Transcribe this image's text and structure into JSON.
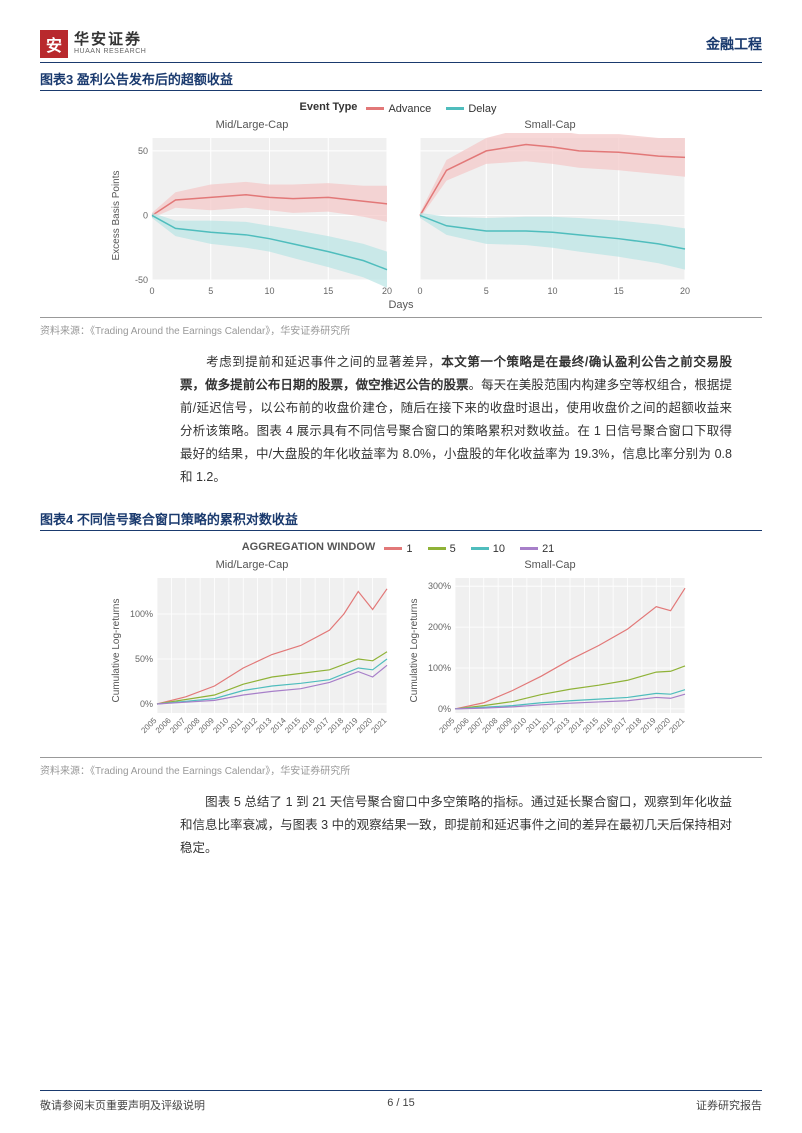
{
  "header": {
    "logo_glyph": "安",
    "logo_cn": "华安证券",
    "logo_en": "HUAAN RESEARCH",
    "category": "金融工程"
  },
  "figure3": {
    "title": "图表3 盈利公告发布后的超额收益",
    "legend_title": "Event Type",
    "series": [
      {
        "name": "Advance",
        "color": "#e27878",
        "fill": "#f4c6c6"
      },
      {
        "name": "Delay",
        "color": "#4fbdbd",
        "fill": "#b8e4e4"
      }
    ],
    "panels": [
      "Mid/Large-Cap",
      "Small-Cap"
    ],
    "y_label": "Excess Basis Points",
    "x_label": "Days",
    "xlim": [
      0,
      20
    ],
    "xtick_step": 5,
    "ylim": [
      -50,
      60
    ],
    "yticks": [
      -50,
      0,
      50
    ],
    "background": "#f0f0f0",
    "grid_color": "#ffffff",
    "data": {
      "mid": {
        "advance": {
          "x": [
            0,
            2,
            5,
            8,
            10,
            12,
            15,
            18,
            20
          ],
          "y": [
            0,
            12,
            14,
            16,
            14,
            13,
            14,
            11,
            9
          ],
          "lo": [
            -2,
            6,
            4,
            6,
            4,
            2,
            3,
            -1,
            -5
          ],
          "hi": [
            2,
            18,
            24,
            26,
            24,
            24,
            25,
            23,
            23
          ]
        },
        "delay": {
          "x": [
            0,
            2,
            5,
            8,
            10,
            12,
            15,
            18,
            20
          ],
          "y": [
            0,
            -10,
            -13,
            -15,
            -18,
            -22,
            -28,
            -35,
            -42
          ],
          "lo": [
            -2,
            -16,
            -22,
            -25,
            -28,
            -33,
            -40,
            -48,
            -56
          ],
          "hi": [
            2,
            -4,
            -4,
            -5,
            -8,
            -11,
            -16,
            -22,
            -28
          ]
        }
      },
      "small": {
        "advance": {
          "x": [
            0,
            2,
            5,
            8,
            10,
            12,
            15,
            18,
            20
          ],
          "y": [
            0,
            35,
            50,
            55,
            53,
            50,
            49,
            46,
            45
          ],
          "lo": [
            -2,
            27,
            40,
            42,
            40,
            37,
            35,
            32,
            30
          ],
          "hi": [
            2,
            43,
            60,
            68,
            66,
            63,
            63,
            60,
            60
          ]
        },
        "delay": {
          "x": [
            0,
            2,
            5,
            8,
            10,
            12,
            15,
            18,
            20
          ],
          "y": [
            0,
            -8,
            -12,
            -12,
            -13,
            -15,
            -18,
            -22,
            -26
          ],
          "lo": [
            -2,
            -15,
            -22,
            -23,
            -25,
            -28,
            -32,
            -37,
            -42
          ],
          "hi": [
            2,
            -1,
            -2,
            -1,
            -1,
            -2,
            -4,
            -7,
            -10
          ]
        }
      }
    },
    "source": "资料来源：《Trading Around the Earnings Calendar》，华安证券研究所"
  },
  "paragraph1": {
    "indent": "　　",
    "pre": "考虑到提前和延迟事件之间的显著差异，",
    "bold": "本文第一个策略是在最终/确认盈利公告之前交易股票，做多提前公布日期的股票，做空推迟公告的股票",
    "post": "。每天在美股范围内构建多空等权组合，根据提前/延迟信号，以公布前的收盘价建仓，随后在接下来的收盘时退出，使用收盘价之间的超额收益来分析该策略。图表 4 展示具有不同信号聚合窗口的策略累积对数收益。在 1 日信号聚合窗口下取得最好的结果，中/大盘股的年化收益率为 8.0%，小盘股的年化收益率为 19.3%，信息比率分别为 0.8 和 1.2。"
  },
  "figure4": {
    "title": "图表4 不同信号聚合窗口策略的累积对数收益",
    "legend_title": "AGGREGATION WINDOW",
    "series": [
      {
        "name": "1",
        "color": "#e27878"
      },
      {
        "name": "5",
        "color": "#8fb237"
      },
      {
        "name": "10",
        "color": "#4fbdbd"
      },
      {
        "name": "21",
        "color": "#a77fc9"
      }
    ],
    "panels": [
      "Mid/Large-Cap",
      "Small-Cap"
    ],
    "y_label": "Cumulative Log-returns",
    "xlim": [
      2005,
      2021
    ],
    "xticks": [
      2005,
      2006,
      2007,
      2008,
      2009,
      2010,
      2011,
      2012,
      2013,
      2014,
      2015,
      2016,
      2017,
      2018,
      2019,
      2020,
      2021
    ],
    "ylim_mid": [
      -10,
      140
    ],
    "yticks_mid": [
      0,
      50,
      100
    ],
    "ylim_small": [
      -10,
      320
    ],
    "yticks_small": [
      0,
      100,
      200,
      300
    ],
    "ytick_suffix": "%",
    "background": "#f0f0f0",
    "grid_color": "#ffffff",
    "data": {
      "mid": {
        "1": [
          [
            2005,
            0
          ],
          [
            2007,
            8
          ],
          [
            2009,
            20
          ],
          [
            2011,
            40
          ],
          [
            2013,
            55
          ],
          [
            2015,
            65
          ],
          [
            2017,
            82
          ],
          [
            2018,
            100
          ],
          [
            2019,
            125
          ],
          [
            2020,
            105
          ],
          [
            2021,
            128
          ]
        ],
        "5": [
          [
            2005,
            0
          ],
          [
            2007,
            5
          ],
          [
            2009,
            10
          ],
          [
            2011,
            22
          ],
          [
            2013,
            30
          ],
          [
            2015,
            34
          ],
          [
            2017,
            38
          ],
          [
            2019,
            50
          ],
          [
            2020,
            48
          ],
          [
            2021,
            58
          ]
        ],
        "10": [
          [
            2005,
            0
          ],
          [
            2007,
            3
          ],
          [
            2009,
            6
          ],
          [
            2011,
            15
          ],
          [
            2013,
            20
          ],
          [
            2015,
            23
          ],
          [
            2017,
            27
          ],
          [
            2019,
            40
          ],
          [
            2020,
            38
          ],
          [
            2021,
            50
          ]
        ],
        "21": [
          [
            2005,
            0
          ],
          [
            2007,
            2
          ],
          [
            2009,
            4
          ],
          [
            2011,
            10
          ],
          [
            2013,
            14
          ],
          [
            2015,
            17
          ],
          [
            2017,
            24
          ],
          [
            2019,
            36
          ],
          [
            2020,
            30
          ],
          [
            2021,
            43
          ]
        ]
      },
      "small": {
        "1": [
          [
            2005,
            0
          ],
          [
            2007,
            15
          ],
          [
            2009,
            45
          ],
          [
            2011,
            80
          ],
          [
            2013,
            120
          ],
          [
            2015,
            155
          ],
          [
            2017,
            195
          ],
          [
            2019,
            250
          ],
          [
            2020,
            240
          ],
          [
            2021,
            295
          ]
        ],
        "5": [
          [
            2005,
            0
          ],
          [
            2007,
            8
          ],
          [
            2009,
            18
          ],
          [
            2011,
            35
          ],
          [
            2013,
            48
          ],
          [
            2015,
            58
          ],
          [
            2017,
            70
          ],
          [
            2019,
            90
          ],
          [
            2020,
            92
          ],
          [
            2021,
            105
          ]
        ],
        "10": [
          [
            2005,
            0
          ],
          [
            2007,
            4
          ],
          [
            2009,
            8
          ],
          [
            2011,
            15
          ],
          [
            2013,
            20
          ],
          [
            2015,
            24
          ],
          [
            2017,
            28
          ],
          [
            2019,
            38
          ],
          [
            2020,
            36
          ],
          [
            2021,
            47
          ]
        ],
        "21": [
          [
            2005,
            0
          ],
          [
            2007,
            2
          ],
          [
            2009,
            5
          ],
          [
            2011,
            10
          ],
          [
            2013,
            14
          ],
          [
            2015,
            17
          ],
          [
            2017,
            20
          ],
          [
            2019,
            28
          ],
          [
            2020,
            26
          ],
          [
            2021,
            36
          ]
        ]
      }
    },
    "source": "资料来源：《Trading Around the Earnings Calendar》，华安证券研究所"
  },
  "paragraph2": {
    "indent": "　　",
    "text": "图表 5 总结了 1 到 21 天信号聚合窗口中多空策略的指标。通过延长聚合窗口，观察到年化收益和信息比率衰减，与图表 3 中的观察结果一致，即提前和延迟事件之间的差异在最初几天后保持相对稳定。"
  },
  "footer": {
    "left": "敬请参阅末页重要声明及评级说明",
    "page_current": "6",
    "page_sep": " / ",
    "page_total": "15",
    "right": "证券研究报告"
  }
}
